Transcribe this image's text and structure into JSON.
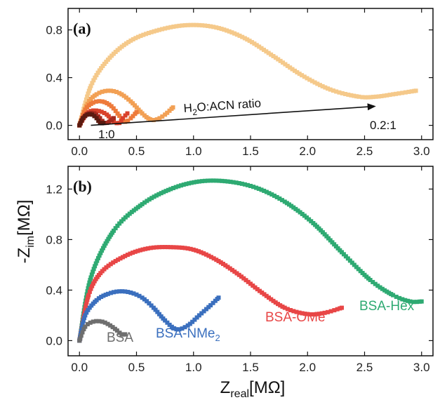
{
  "chart_data": [
    {
      "panel_label": "(a)",
      "type": "scatter",
      "xlim": [
        -0.1,
        3.1
      ],
      "ylim": [
        -0.12,
        0.98
      ],
      "xticks": [
        0.0,
        0.5,
        1.0,
        1.5,
        2.0,
        2.5,
        3.0
      ],
      "xtick_labels": [
        "0.0",
        "0.5",
        "1.0",
        "1.5",
        "2.0",
        "2.5",
        "3.0"
      ],
      "yticks": [
        0.0,
        0.4,
        0.8
      ],
      "ytick_labels": [
        "0.0",
        "0.4",
        "0.8"
      ],
      "series": [
        {
          "color": "#f5c98a",
          "x": [
            0.0,
            0.1,
            0.25,
            0.45,
            0.7,
            0.95,
            1.2,
            1.45,
            1.7,
            1.95,
            2.2,
            2.45,
            2.6,
            2.75,
            2.95
          ],
          "y": [
            0.0,
            0.33,
            0.55,
            0.71,
            0.8,
            0.84,
            0.82,
            0.73,
            0.58,
            0.42,
            0.3,
            0.24,
            0.24,
            0.26,
            0.29
          ]
        },
        {
          "color": "#f2a054",
          "x": [
            0.0,
            0.07,
            0.15,
            0.25,
            0.35,
            0.45,
            0.55,
            0.62,
            0.68,
            0.75,
            0.82
          ],
          "y": [
            0.0,
            0.18,
            0.26,
            0.29,
            0.27,
            0.2,
            0.1,
            0.05,
            0.05,
            0.09,
            0.15
          ]
        },
        {
          "color": "#ee7a3a",
          "x": [
            0.0,
            0.05,
            0.12,
            0.2,
            0.28,
            0.35,
            0.4,
            0.45,
            0.5
          ],
          "y": [
            0.0,
            0.13,
            0.19,
            0.2,
            0.16,
            0.08,
            0.03,
            0.06,
            0.11
          ]
        },
        {
          "color": "#d9412b",
          "x": [
            0.0,
            0.05,
            0.1,
            0.17,
            0.24,
            0.3,
            0.35,
            0.38,
            0.42
          ],
          "y": [
            0.0,
            0.08,
            0.12,
            0.12,
            0.09,
            0.03,
            0.02,
            0.06,
            0.1
          ]
        },
        {
          "color": "#a52a1f",
          "x": [
            0.0,
            0.04,
            0.08,
            0.13,
            0.18,
            0.22,
            0.26,
            0.3
          ],
          "y": [
            0.0,
            0.07,
            0.1,
            0.1,
            0.06,
            0.02,
            0.03,
            0.06
          ]
        },
        {
          "color": "#5a1a10",
          "x": [
            0.0,
            0.03,
            0.07,
            0.11,
            0.15,
            0.18,
            0.21
          ],
          "y": [
            0.0,
            0.06,
            0.09,
            0.09,
            0.06,
            0.02,
            0.02
          ]
        }
      ],
      "annotations": {
        "ratio_label_main": "H",
        "ratio_label_sub": "2",
        "ratio_label_rest": "O:ACN ratio",
        "start_label": "1:0",
        "end_label": "0.2:1"
      },
      "arrow": {
        "from": [
          0.1,
          0.0
        ],
        "to": [
          2.6,
          0.16
        ]
      }
    },
    {
      "panel_label": "(b)",
      "type": "scatter",
      "xlim": [
        -0.1,
        3.1
      ],
      "ylim": [
        -0.12,
        1.38
      ],
      "xticks": [
        0.0,
        0.5,
        1.0,
        1.5,
        2.0,
        2.5,
        3.0
      ],
      "xtick_labels": [
        "0.0",
        "0.5",
        "1.0",
        "1.5",
        "2.0",
        "2.5",
        "3.0"
      ],
      "yticks": [
        0.0,
        0.4,
        0.8,
        1.2
      ],
      "ytick_labels": [
        "0.0",
        "0.4",
        "0.8",
        "1.2"
      ],
      "series": [
        {
          "name": "BSA-Hex",
          "color": "#2eaa72",
          "x": [
            0.0,
            0.1,
            0.3,
            0.55,
            0.8,
            1.05,
            1.3,
            1.55,
            1.8,
            2.05,
            2.3,
            2.55,
            2.75,
            2.9,
            3.0
          ],
          "y": [
            0.0,
            0.5,
            0.87,
            1.08,
            1.2,
            1.26,
            1.26,
            1.21,
            1.1,
            0.93,
            0.7,
            0.48,
            0.36,
            0.31,
            0.31
          ]
        },
        {
          "name": "BSA-OMe",
          "color": "#e84646",
          "x": [
            0.0,
            0.08,
            0.2,
            0.4,
            0.6,
            0.8,
            1.0,
            1.2,
            1.4,
            1.6,
            1.8,
            2.0,
            2.15,
            2.3
          ],
          "y": [
            0.0,
            0.36,
            0.55,
            0.67,
            0.73,
            0.74,
            0.72,
            0.64,
            0.52,
            0.38,
            0.26,
            0.21,
            0.22,
            0.26
          ]
        },
        {
          "name": "BSA-NMe2",
          "name_main": "BSA-NMe",
          "name_sub": "2",
          "color": "#3a6fbe",
          "x": [
            0.0,
            0.05,
            0.15,
            0.25,
            0.35,
            0.45,
            0.55,
            0.65,
            0.75,
            0.85,
            0.95,
            1.05,
            1.15,
            1.22
          ],
          "y": [
            0.0,
            0.2,
            0.32,
            0.37,
            0.39,
            0.38,
            0.34,
            0.26,
            0.16,
            0.09,
            0.12,
            0.2,
            0.28,
            0.34
          ]
        },
        {
          "name": "BSA",
          "color": "#6e6e6e",
          "x": [
            0.0,
            0.05,
            0.12,
            0.2,
            0.27,
            0.33,
            0.37,
            0.4
          ],
          "y": [
            0.0,
            0.11,
            0.15,
            0.15,
            0.12,
            0.08,
            0.05,
            0.05
          ]
        }
      ]
    }
  ],
  "axes": {
    "ylabel_main": "-Z",
    "ylabel_sub": "im",
    "ylabel_unit": "[MΩ]",
    "xlabel_main": "Z",
    "xlabel_sub": "real",
    "xlabel_unit": "[MΩ]"
  }
}
